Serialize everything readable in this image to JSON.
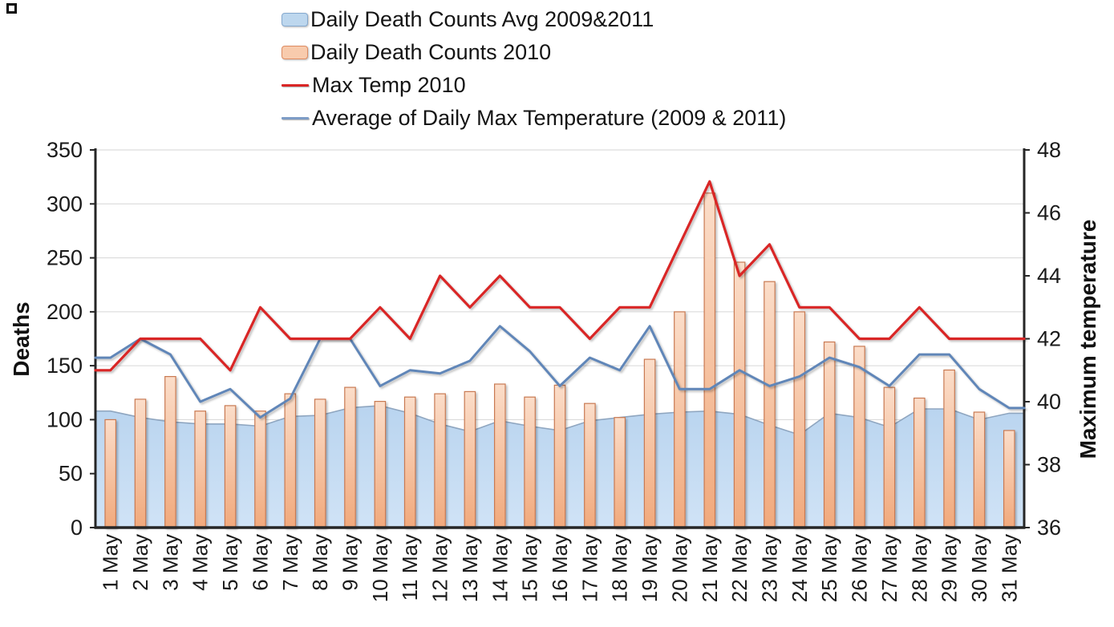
{
  "legend": {
    "items": [
      {
        "label": "Daily Death Counts Avg 2009&2011",
        "swatch": "bar",
        "fill": "#bdd7ee",
        "border": "#85a9cf"
      },
      {
        "label": "Daily Death Counts 2010",
        "swatch": "bar",
        "fill": "#f8cbad",
        "border": "#df8c62"
      },
      {
        "label": "Max Temp 2010",
        "swatch": "line",
        "color": "#d92525"
      },
      {
        "label": "Average of Daily Max Temperature (2009 & 2011)",
        "swatch": "line",
        "color": "#7d9cc6"
      }
    ]
  },
  "chart_data": {
    "type": "combo",
    "categories": [
      "1 May",
      "2 May",
      "3 May",
      "4 May",
      "5 May",
      "6 May",
      "7 May",
      "8 May",
      "9 May",
      "10 May",
      "11 May",
      "12 May",
      "13 May",
      "14 May",
      "15 May",
      "16 May",
      "17 May",
      "18 May",
      "19 May",
      "20 May",
      "21 May",
      "22 May",
      "23 May",
      "24 May",
      "25 May",
      "26 May",
      "27 May",
      "28 May",
      "29 May",
      "30 May",
      "31 May"
    ],
    "series": [
      {
        "name": "Daily Death Counts Avg 2009&2011",
        "type": "area",
        "axis": "left",
        "color": "#8fa6c0",
        "fill_top": "#b9d4ef",
        "fill_bottom": "#d0e3f6",
        "values": [
          108,
          102,
          98,
          96,
          96,
          94,
          103,
          104,
          111,
          113,
          106,
          96,
          89,
          99,
          94,
          90,
          99,
          102,
          105,
          107,
          108,
          105,
          95,
          86,
          106,
          102,
          93,
          110,
          110,
          100,
          106
        ]
      },
      {
        "name": "Daily Death Counts 2010",
        "type": "bar",
        "axis": "left",
        "color": "#c97a52",
        "fill_top": "#fbddc9",
        "fill_bottom": "#f1a97c",
        "values": [
          100,
          119,
          140,
          108,
          113,
          108,
          124,
          119,
          130,
          117,
          121,
          124,
          126,
          133,
          121,
          132,
          115,
          102,
          156,
          200,
          310,
          246,
          228,
          200,
          172,
          168,
          130,
          120,
          146,
          107,
          90
        ]
      },
      {
        "name": "Max Temp 2010",
        "type": "line",
        "axis": "right",
        "color": "#d92525",
        "values": [
          41,
          42,
          42,
          42,
          41,
          43,
          42,
          42,
          42,
          43,
          42,
          44,
          43,
          44,
          43,
          43,
          42,
          43,
          43,
          45,
          47,
          44,
          45,
          43,
          43,
          42,
          42,
          43,
          42,
          42,
          42
        ]
      },
      {
        "name": "Average of Daily Max Temperature (2009 & 2011)",
        "type": "line",
        "axis": "right",
        "color": "#6186b8",
        "values": [
          41.4,
          42,
          41.5,
          40,
          40.4,
          39.5,
          40.1,
          42,
          42,
          40.5,
          41,
          40.9,
          41.3,
          42.4,
          41.6,
          40.5,
          41.4,
          41,
          42.4,
          40.4,
          40.4,
          41,
          40.5,
          40.8,
          41.4,
          41.1,
          40.5,
          41.5,
          41.5,
          40.4,
          39.8
        ]
      }
    ],
    "left_axis": {
      "label": "Deaths",
      "range": [
        0,
        350
      ],
      "ticks": [
        0,
        50,
        100,
        150,
        200,
        250,
        300,
        350
      ]
    },
    "right_axis": {
      "label": "Maximum temperature",
      "range": [
        36,
        48
      ],
      "ticks": [
        36,
        38,
        40,
        42,
        44,
        46,
        48
      ]
    },
    "grid": "horizontal",
    "legend_position": "top-center"
  }
}
